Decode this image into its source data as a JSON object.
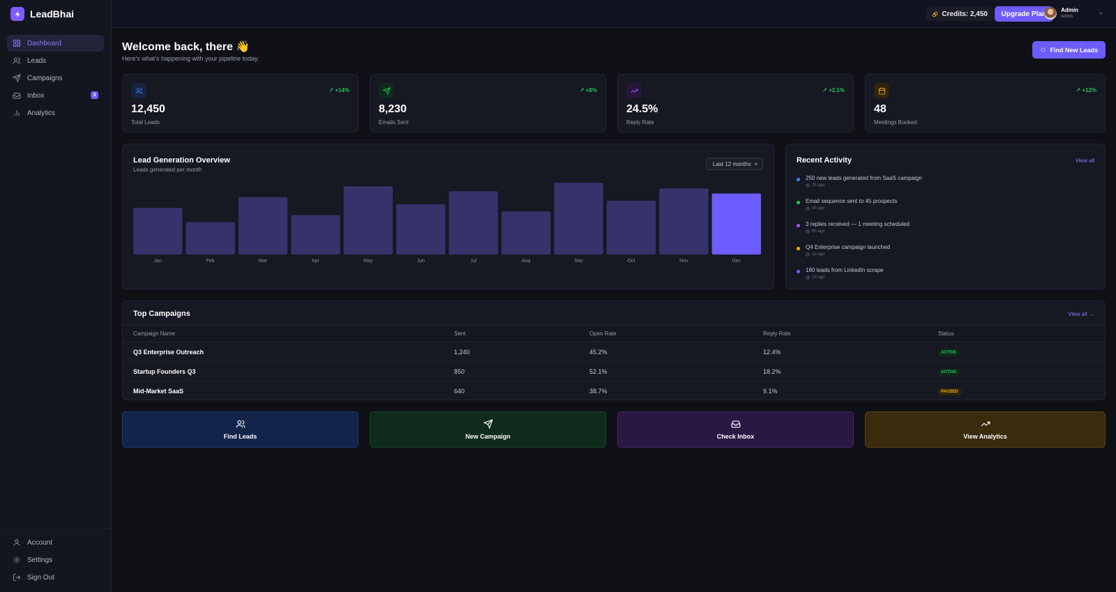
{
  "brand": {
    "name": "LeadBhai"
  },
  "sidebar": {
    "items": [
      {
        "label": "Dashboard",
        "icon": "grid-icon",
        "active": true
      },
      {
        "label": "Leads",
        "icon": "users-icon"
      },
      {
        "label": "Campaigns",
        "icon": "send-icon"
      },
      {
        "label": "Inbox",
        "icon": "inbox-icon",
        "badge": "3"
      },
      {
        "label": "Analytics",
        "icon": "bar-chart-icon"
      }
    ],
    "bottom": [
      {
        "label": "Account",
        "icon": "user-icon"
      },
      {
        "label": "Settings",
        "icon": "gear-icon"
      },
      {
        "label": "Sign Out",
        "icon": "sign-out-icon"
      }
    ]
  },
  "topbar": {
    "credits": "Credits: 2,450",
    "upgrade_label": "Upgrade Plan",
    "user_name": "Admin",
    "user_role": "Admin"
  },
  "header": {
    "title": "Welcome back, there 👋",
    "subtitle": "Here's what's happening with your pipeline today.",
    "find_leads_label": "Find New Leads"
  },
  "stats": [
    {
      "value": "12,450",
      "label": "Total Leads",
      "delta": "↗ +14%",
      "icon": "users-icon",
      "color": "#3b82f6"
    },
    {
      "value": "8,230",
      "label": "Emails Sent",
      "delta": "↗ +8%",
      "icon": "send-icon",
      "color": "#22c55e"
    },
    {
      "value": "24.5%",
      "label": "Reply Rate",
      "delta": "↗ +2.1%",
      "icon": "trend-up-icon",
      "color": "#a855f7"
    },
    {
      "value": "48",
      "label": "Meetings Booked",
      "delta": "↗ +12%",
      "icon": "calendar-icon",
      "color": "#eab308"
    }
  ],
  "chart": {
    "title": "Lead Generation Overview",
    "subtitle": "Leads generated per month",
    "range_label": "Last 12 months"
  },
  "chart_data": {
    "type": "bar",
    "categories": [
      "Jan",
      "Feb",
      "Mar",
      "Apr",
      "May",
      "Jun",
      "Jul",
      "Aug",
      "Sep",
      "Oct",
      "Nov",
      "Dec"
    ],
    "values": [
      65,
      45,
      80,
      55,
      95,
      70,
      88,
      60,
      100,
      75,
      92,
      85
    ],
    "highlight_index": 11,
    "ylim": [
      0,
      100
    ],
    "grid": false,
    "bar_color": "#35336a",
    "highlight_color": "#6d5cff"
  },
  "activity": {
    "title": "Recent Activity",
    "view_all": "View all",
    "items": [
      {
        "text": "250 new leads generated from SaaS campaign",
        "time": "2h ago",
        "color": "#3b82f6"
      },
      {
        "text": "Email sequence sent to 45 prospects",
        "time": "4h ago",
        "color": "#22c55e"
      },
      {
        "text": "3 replies received — 1 meeting scheduled",
        "time": "6h ago",
        "color": "#a855f7"
      },
      {
        "text": "Q4 Enterprise campaign launched",
        "time": "1d ago",
        "color": "#eab308"
      },
      {
        "text": "180 leads from LinkedIn scrape",
        "time": "1d ago",
        "color": "#6d5cff"
      }
    ]
  },
  "campaigns": {
    "title": "Top Campaigns",
    "view_all": "View all →",
    "columns": [
      "Campaign Name",
      "Sent",
      "Open Rate",
      "Reply Rate",
      "Status"
    ],
    "rows": [
      {
        "name": "Q3 Enterprise Outreach",
        "sent": "1,240",
        "open": "45.2%",
        "reply": "12.4%",
        "status": "ACTIVE"
      },
      {
        "name": "Startup Founders Q3",
        "sent": "850",
        "open": "52.1%",
        "reply": "18.2%",
        "status": "ACTIVE"
      },
      {
        "name": "Mid-Market SaaS",
        "sent": "640",
        "open": "38.7%",
        "reply": "9.1%",
        "status": "PAUSED"
      }
    ]
  },
  "quick_actions": [
    {
      "label": "Find Leads",
      "icon": "users-icon",
      "bg": "#13244a",
      "border": "#1f3a70"
    },
    {
      "label": "New Campaign",
      "icon": "send-icon",
      "bg": "#0e2b1c",
      "border": "#17452c"
    },
    {
      "label": "Check Inbox",
      "icon": "inbox-icon",
      "bg": "#2a1742",
      "border": "#432568"
    },
    {
      "label": "View Analytics",
      "icon": "trend-up-icon",
      "bg": "#3a2b0d",
      "border": "#5b4414"
    }
  ]
}
